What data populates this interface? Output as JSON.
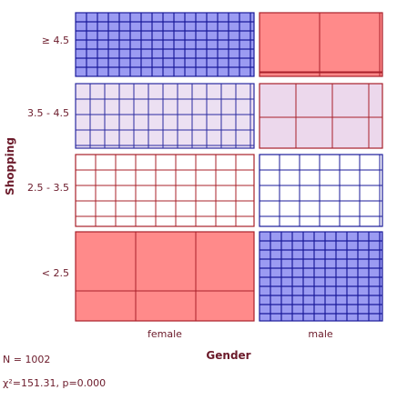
{
  "chart_data": {
    "type": "mosaic",
    "x_variable": "Gender",
    "y_variable": "Shopping",
    "x_categories": [
      "female",
      "male"
    ],
    "y_categories": [
      "≥ 4.5",
      "3.5 - 4.5",
      "2.5 - 3.5",
      "< 2.5"
    ],
    "cells": [
      {
        "gender": "female",
        "shopping": "≥ 4.5",
        "shading": "strong-positive"
      },
      {
        "gender": "male",
        "shopping": "≥ 4.5",
        "shading": "strong-negative"
      },
      {
        "gender": "female",
        "shopping": "3.5 - 4.5",
        "shading": "weak-positive"
      },
      {
        "gender": "male",
        "shopping": "3.5 - 4.5",
        "shading": "weak-negative"
      },
      {
        "gender": "female",
        "shopping": "2.5 - 3.5",
        "shading": "neutral"
      },
      {
        "gender": "male",
        "shopping": "2.5 - 3.5",
        "shading": "neutral"
      },
      {
        "gender": "female",
        "shopping": "< 2.5",
        "shading": "strong-negative"
      },
      {
        "gender": "male",
        "shopping": "< 2.5",
        "shading": "strong-positive"
      }
    ],
    "colors": {
      "strong_positive_fill": "#9b9bf2",
      "strong_positive_line": "#1a1a9a",
      "weak_positive_fill": "#ece0f2",
      "weak_positive_line": "#2a2aa0",
      "neutral_fill": "#ffffff",
      "neutral_line_blue": "#1a1a9a",
      "neutral_line_red": "#a8202a",
      "weak_negative_fill": "#ecd8ec",
      "weak_negative_line": "#a8202a",
      "strong_negative_fill": "#ff8a8a",
      "strong_negative_line": "#a8202a",
      "label_color": "#6b1a2a"
    }
  },
  "stats": {
    "n": "N = 1002",
    "chi": "χ²=151.31, p=0.000"
  }
}
